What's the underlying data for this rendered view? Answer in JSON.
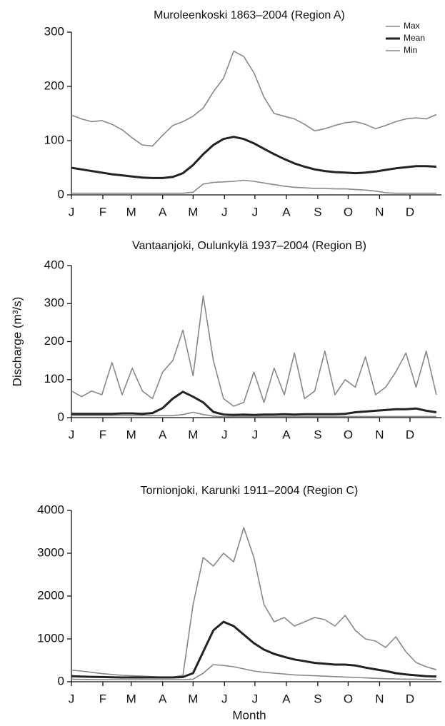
{
  "chart_data": [
    {
      "type": "line",
      "title": "Muroleenkoski 1863–2004 (Region A)",
      "legend": "upper right",
      "x": [
        0,
        10,
        20,
        30,
        40,
        50,
        60,
        70,
        80,
        90,
        100,
        110,
        120,
        130,
        140,
        150,
        160,
        170,
        180,
        190,
        200,
        210,
        220,
        230,
        240,
        250,
        260,
        270,
        280,
        290,
        300,
        310,
        320,
        330,
        340,
        350,
        360
      ],
      "xlim": [
        0,
        365
      ],
      "xticks": [
        {
          "value": 0,
          "label": "J"
        },
        {
          "value": 31,
          "label": "F"
        },
        {
          "value": 59,
          "label": "M"
        },
        {
          "value": 90,
          "label": "A"
        },
        {
          "value": 120,
          "label": "M"
        },
        {
          "value": 151,
          "label": "J"
        },
        {
          "value": 181,
          "label": "J"
        },
        {
          "value": 212,
          "label": "A"
        },
        {
          "value": 243,
          "label": "S"
        },
        {
          "value": 273,
          "label": "O"
        },
        {
          "value": 304,
          "label": "N"
        },
        {
          "value": 334,
          "label": "D"
        }
      ],
      "ylim": [
        0,
        300
      ],
      "yticks": [
        0,
        100,
        200,
        300
      ],
      "series": [
        {
          "name": "Max",
          "color": "#888888",
          "values": [
            147,
            140,
            135,
            137,
            130,
            120,
            105,
            92,
            90,
            110,
            128,
            135,
            145,
            160,
            190,
            215,
            265,
            255,
            225,
            180,
            150,
            145,
            140,
            130,
            118,
            122,
            128,
            133,
            135,
            130,
            122,
            128,
            135,
            140,
            142,
            140,
            148
          ]
        },
        {
          "name": "Mean",
          "color": "#222222",
          "values": [
            50,
            47,
            44,
            41,
            38,
            36,
            34,
            32,
            31,
            31,
            33,
            40,
            55,
            75,
            92,
            103,
            107,
            103,
            95,
            85,
            75,
            66,
            58,
            52,
            47,
            44,
            42,
            41,
            40,
            41,
            43,
            46,
            49,
            51,
            53,
            53,
            52
          ]
        },
        {
          "name": "Min",
          "color": "#888888",
          "values": [
            3,
            3,
            3,
            3,
            3,
            3,
            3,
            3,
            3,
            3,
            3,
            3,
            5,
            20,
            23,
            24,
            25,
            27,
            25,
            22,
            19,
            16,
            14,
            13,
            12,
            12,
            11,
            11,
            10,
            9,
            7,
            4,
            3,
            3,
            3,
            3,
            3
          ]
        }
      ]
    },
    {
      "type": "line",
      "title": "Vantaanjoki, Oulunkylä 1937–2004 (Region B)",
      "ylabel": "Discharge (m³/s)",
      "x": [
        0,
        10,
        20,
        30,
        40,
        50,
        60,
        70,
        80,
        90,
        100,
        110,
        120,
        130,
        140,
        150,
        160,
        170,
        180,
        190,
        200,
        210,
        220,
        230,
        240,
        250,
        260,
        270,
        280,
        290,
        300,
        310,
        320,
        330,
        340,
        350,
        360
      ],
      "xlim": [
        0,
        365
      ],
      "xticks": [
        {
          "value": 0,
          "label": "J"
        },
        {
          "value": 31,
          "label": "F"
        },
        {
          "value": 59,
          "label": "M"
        },
        {
          "value": 90,
          "label": "A"
        },
        {
          "value": 120,
          "label": "M"
        },
        {
          "value": 151,
          "label": "J"
        },
        {
          "value": 181,
          "label": "J"
        },
        {
          "value": 212,
          "label": "A"
        },
        {
          "value": 243,
          "label": "S"
        },
        {
          "value": 273,
          "label": "O"
        },
        {
          "value": 304,
          "label": "N"
        },
        {
          "value": 334,
          "label": "D"
        }
      ],
      "ylim": [
        0,
        400
      ],
      "yticks": [
        0,
        100,
        200,
        300,
        400
      ],
      "series": [
        {
          "color": "#888888",
          "values": [
            70,
            55,
            70,
            60,
            145,
            60,
            130,
            70,
            50,
            120,
            150,
            230,
            110,
            320,
            150,
            50,
            30,
            40,
            120,
            40,
            130,
            60,
            170,
            50,
            70,
            175,
            60,
            100,
            80,
            160,
            60,
            80,
            120,
            170,
            80,
            175,
            60
          ]
        },
        {
          "color": "#222222",
          "values": [
            10,
            10,
            10,
            10,
            10,
            11,
            11,
            10,
            12,
            25,
            50,
            68,
            55,
            40,
            15,
            8,
            7,
            8,
            7,
            8,
            8,
            9,
            8,
            9,
            9,
            9,
            9,
            10,
            14,
            16,
            18,
            20,
            22,
            22,
            24,
            18,
            14
          ]
        },
        {
          "color": "#888888",
          "values": [
            5,
            5,
            5,
            5,
            5,
            5,
            5,
            5,
            5,
            5,
            5,
            8,
            14,
            8,
            4,
            2,
            3,
            3,
            3,
            3,
            3,
            3,
            3,
            3,
            3,
            3,
            3,
            3,
            3,
            3,
            3,
            3,
            3,
            3,
            3,
            3,
            3
          ]
        }
      ]
    },
    {
      "type": "line",
      "title": "Tornionjoki, Karunki 1911–2004 (Region C)",
      "xlabel": "Month",
      "x": [
        0,
        10,
        20,
        30,
        40,
        50,
        60,
        70,
        80,
        90,
        100,
        110,
        120,
        130,
        140,
        150,
        160,
        170,
        180,
        190,
        200,
        210,
        220,
        230,
        240,
        250,
        260,
        270,
        280,
        290,
        300,
        310,
        320,
        330,
        340,
        350,
        360
      ],
      "xlim": [
        0,
        365
      ],
      "xticks": [
        {
          "value": 0,
          "label": "J"
        },
        {
          "value": 31,
          "label": "F"
        },
        {
          "value": 59,
          "label": "M"
        },
        {
          "value": 90,
          "label": "A"
        },
        {
          "value": 120,
          "label": "M"
        },
        {
          "value": 151,
          "label": "J"
        },
        {
          "value": 181,
          "label": "J"
        },
        {
          "value": 212,
          "label": "A"
        },
        {
          "value": 243,
          "label": "S"
        },
        {
          "value": 273,
          "label": "O"
        },
        {
          "value": 304,
          "label": "N"
        },
        {
          "value": 334,
          "label": "D"
        }
      ],
      "ylim": [
        0,
        4000
      ],
      "yticks": [
        0,
        1000,
        2000,
        3000,
        4000
      ],
      "series": [
        {
          "color": "#888888",
          "values": [
            270,
            250,
            220,
            190,
            170,
            150,
            140,
            130,
            120,
            110,
            110,
            150,
            1800,
            2900,
            2700,
            3000,
            2800,
            3600,
            2900,
            1800,
            1400,
            1500,
            1300,
            1400,
            1500,
            1450,
            1300,
            1550,
            1200,
            1000,
            950,
            800,
            1050,
            700,
            450,
            350,
            280
          ]
        },
        {
          "color": "#222222",
          "values": [
            130,
            120,
            115,
            110,
            105,
            100,
            100,
            100,
            100,
            100,
            100,
            110,
            200,
            700,
            1200,
            1400,
            1300,
            1100,
            900,
            750,
            650,
            580,
            520,
            480,
            440,
            420,
            400,
            400,
            380,
            330,
            290,
            250,
            200,
            170,
            150,
            130,
            120
          ]
        },
        {
          "color": "#888888",
          "values": [
            60,
            55,
            52,
            50,
            50,
            50,
            50,
            50,
            50,
            50,
            50,
            50,
            60,
            200,
            400,
            380,
            350,
            300,
            250,
            220,
            200,
            180,
            160,
            150,
            140,
            130,
            120,
            110,
            100,
            90,
            80,
            70,
            65,
            60,
            60,
            55,
            55
          ]
        }
      ]
    }
  ]
}
